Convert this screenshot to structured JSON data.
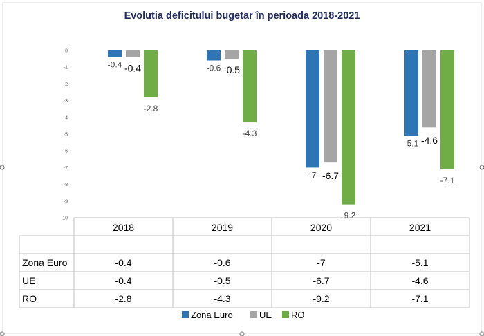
{
  "chart_data": {
    "type": "bar",
    "title": "Evolutia deficitului bugetar  în perioada  2018-2021",
    "categories": [
      "2018",
      "2019",
      "2020",
      "2021"
    ],
    "series": [
      {
        "name": "Zona Euro",
        "values": [
          -0.4,
          -0.6,
          -7,
          -5.1
        ],
        "color": "#2e75b6"
      },
      {
        "name": "UE",
        "values": [
          -0.4,
          -0.5,
          -6.7,
          -4.6
        ],
        "color": "#a5a5a5"
      },
      {
        "name": "RO",
        "values": [
          -2.8,
          -4.3,
          -9.2,
          -7.1
        ],
        "color": "#70ad47"
      }
    ],
    "ylim": [
      -10,
      0
    ],
    "yticks": [
      0,
      -1,
      -2,
      -3,
      -4,
      -5,
      -6,
      -7,
      -8,
      -9,
      -10
    ],
    "data_table": true,
    "legend_position": "bottom",
    "grid": false
  }
}
